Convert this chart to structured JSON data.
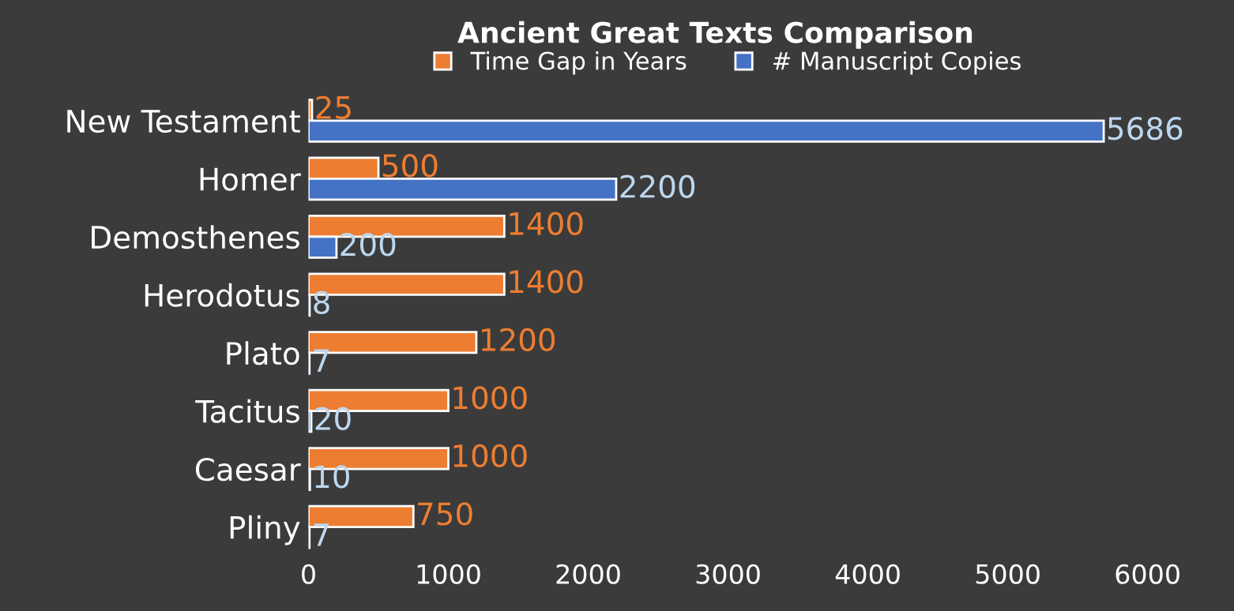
{
  "chart_data": {
    "type": "bar",
    "orientation": "horizontal",
    "title": "Ancient Great Texts Comparison",
    "categories": [
      "New Testament",
      "Homer",
      "Demosthenes",
      "Herodotus",
      "Plato",
      "Tacitus",
      "Caesar",
      "Pliny"
    ],
    "series": [
      {
        "name": "Time Gap in Years",
        "color": "#ed7d31",
        "values": [
          25,
          500,
          1400,
          1400,
          1200,
          1000,
          1000,
          750
        ]
      },
      {
        "name": "# Manuscript Copies",
        "color": "#4472c4",
        "values": [
          5686,
          2200,
          200,
          8,
          7,
          20,
          10,
          7
        ]
      }
    ],
    "xlim": [
      0,
      6000
    ],
    "xticks": [
      0,
      1000,
      2000,
      3000,
      4000,
      5000,
      6000
    ],
    "data_labels": true,
    "legend": "top",
    "grid": false
  }
}
